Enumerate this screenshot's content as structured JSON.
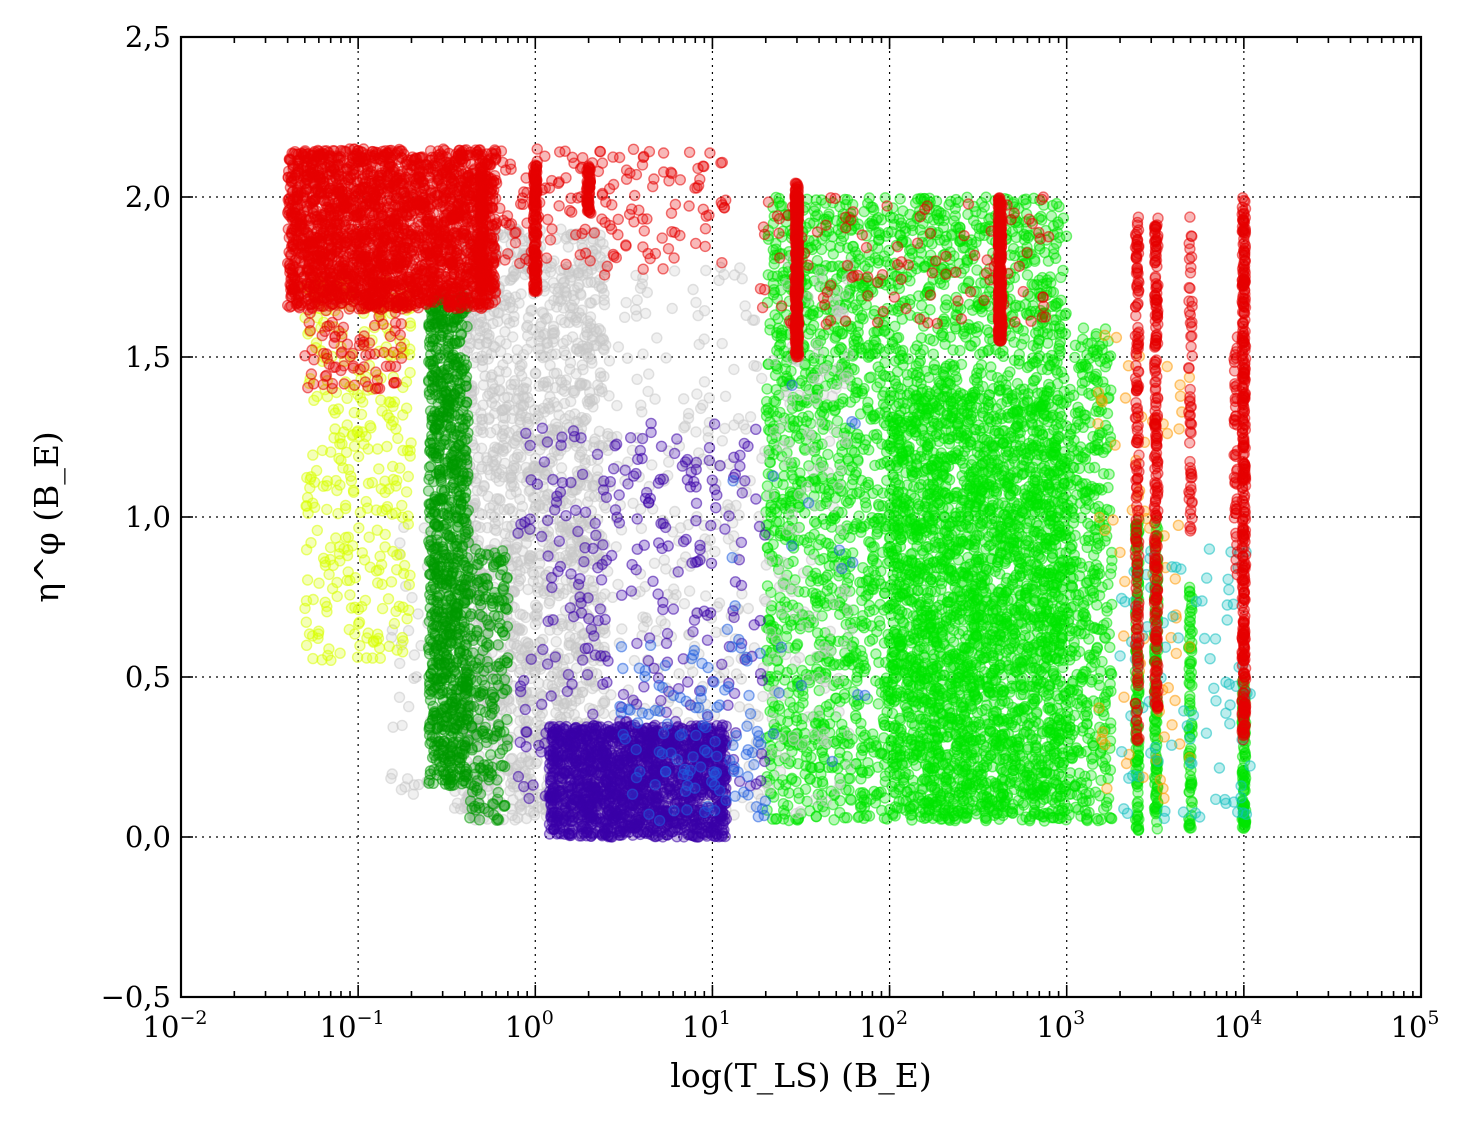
{
  "chart_data": {
    "type": "scatter",
    "title": "",
    "xlabel": "log(T_LS) (B_E)",
    "ylabel": "η^φ (B_E)",
    "xscale": "log",
    "xlim": [
      0.01,
      100000
    ],
    "ylim": [
      -0.5,
      2.5
    ],
    "grid": true,
    "legend": "none",
    "x_ticks": [
      {
        "base": "10",
        "exp": "−2"
      },
      {
        "base": "10",
        "exp": "−1"
      },
      {
        "base": "10",
        "exp": "0"
      },
      {
        "base": "10",
        "exp": "1"
      },
      {
        "base": "10",
        "exp": "2"
      },
      {
        "base": "10",
        "exp": "3"
      },
      {
        "base": "10",
        "exp": "4"
      },
      {
        "base": "10",
        "exp": "5"
      }
    ],
    "y_ticks": [
      "−0,5",
      "0,0",
      "0,5",
      "1,0",
      "1,5",
      "2,0",
      "2,5"
    ],
    "series": [
      {
        "color": "#00e600",
        "regions": [
          {
            "x": [
              20,
              1000
            ],
            "y": [
              0.05,
              2.0
            ],
            "n": 3200
          },
          {
            "x": [
              100,
              1100
            ],
            "y": [
              0.05,
              1.4
            ],
            "n": 1800
          },
          {
            "x": [
              1100,
              1800
            ],
            "y": [
              0.05,
              1.6
            ],
            "n": 350
          }
        ]
      },
      {
        "color": "#00e600",
        "strips": [
          {
            "x": 2500,
            "y": [
              0.02,
              1.0
            ],
            "n": 140
          },
          {
            "x": 3200,
            "y": [
              0.02,
              1.0
            ],
            "n": 140
          },
          {
            "x": 5000,
            "y": [
              0.02,
              0.8
            ],
            "n": 80
          },
          {
            "x": 10000,
            "y": [
              0.02,
              0.5
            ],
            "n": 120
          }
        ]
      },
      {
        "color": "#c8c8c8",
        "regions": [
          {
            "x": [
              0.4,
              2.5
            ],
            "y": [
              0.05,
              1.9
            ],
            "n": 1700
          },
          {
            "x": [
              2.5,
              60
            ],
            "y": [
              0.05,
              1.8
            ],
            "n": 420
          },
          {
            "x": [
              0.15,
              0.5
            ],
            "y": [
              0.05,
              1.0
            ],
            "n": 80
          }
        ]
      },
      {
        "color": "#009900",
        "regions": [
          {
            "x": [
              0.25,
              0.42
            ],
            "y": [
              0.15,
              1.7
            ],
            "n": 1000
          },
          {
            "x": [
              0.42,
              0.7
            ],
            "y": [
              0.05,
              0.9
            ],
            "n": 220
          }
        ]
      },
      {
        "color": "#3a00a8",
        "regions": [
          {
            "x": [
              1.2,
              12
            ],
            "y": [
              0.0,
              0.35
            ],
            "n": 1600
          },
          {
            "x": [
              0.8,
              20
            ],
            "y": [
              0.1,
              1.3
            ],
            "n": 320
          }
        ]
      },
      {
        "color": "#1f5fe0",
        "regions": [
          {
            "x": [
              3,
              20
            ],
            "y": [
              0.05,
              0.6
            ],
            "n": 110
          },
          {
            "x": [
              10,
              80
            ],
            "y": [
              0.2,
              1.5
            ],
            "n": 25
          }
        ]
      },
      {
        "color": "#d9ff00",
        "regions": [
          {
            "x": [
              0.05,
              0.2
            ],
            "y": [
              0.55,
              1.75
            ],
            "n": 320
          }
        ]
      },
      {
        "color": "#ff9900",
        "regions": [
          {
            "x": [
              1500,
              5000
            ],
            "y": [
              0.1,
              1.6
            ],
            "n": 70
          }
        ]
      },
      {
        "color": "#10c0c0",
        "regions": [
          {
            "x": [
              2000,
              11000
            ],
            "y": [
              0.05,
              0.9
            ],
            "n": 90
          }
        ]
      },
      {
        "color": "#e60000",
        "regions": [
          {
            "x": [
              0.04,
              0.6
            ],
            "y": [
              1.65,
              2.15
            ],
            "n": 2500
          },
          {
            "x": [
              0.05,
              0.18
            ],
            "y": [
              1.4,
              1.75
            ],
            "n": 120
          },
          {
            "x": [
              0.6,
              12
            ],
            "y": [
              1.75,
              2.15
            ],
            "n": 160
          },
          {
            "x": [
              18,
              800
            ],
            "y": [
              1.6,
              2.0
            ],
            "n": 110
          }
        ],
        "strips": [
          {
            "x": 0.5,
            "y": [
              1.7,
              2.1
            ],
            "n": 120
          },
          {
            "x": 1.0,
            "y": [
              1.7,
              2.1
            ],
            "n": 150
          },
          {
            "x": 2.0,
            "y": [
              1.95,
              2.1
            ],
            "n": 60
          },
          {
            "x": 30,
            "y": [
              1.5,
              2.05
            ],
            "n": 320
          },
          {
            "x": 420,
            "y": [
              1.55,
              2.0
            ],
            "n": 260
          },
          {
            "x": 2500,
            "y": [
              0.3,
              1.95
            ],
            "n": 170
          },
          {
            "x": 3200,
            "y": [
              0.4,
              1.95
            ],
            "n": 230
          },
          {
            "x": 5000,
            "y": [
              0.9,
              1.95
            ],
            "n": 60
          },
          {
            "x": 10000,
            "y": [
              0.3,
              2.0
            ],
            "n": 380
          },
          {
            "x": 9000,
            "y": [
              0.8,
              1.6
            ],
            "n": 50
          }
        ]
      }
    ]
  }
}
